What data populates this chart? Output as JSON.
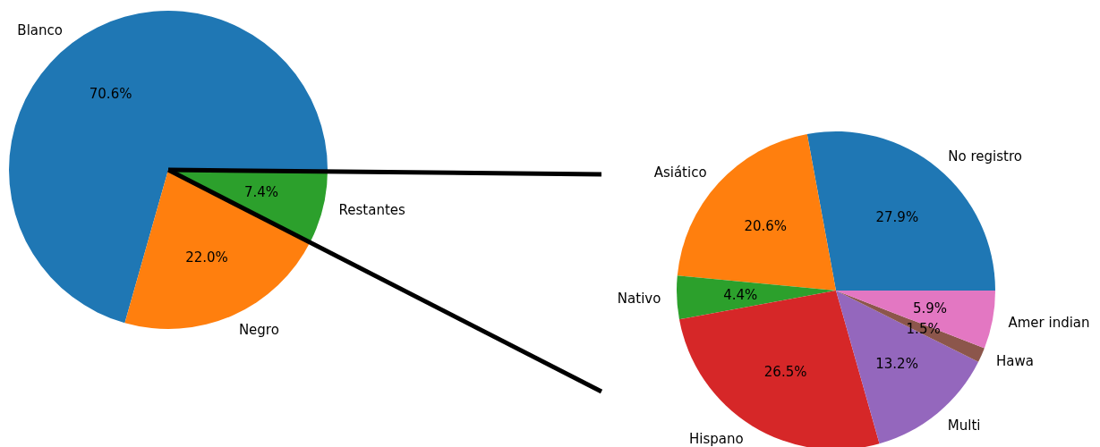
{
  "chart_data": [
    {
      "type": "pie",
      "categories": [
        "Blanco",
        "Negro",
        "Restantes"
      ],
      "values": [
        70.6,
        22.0,
        7.4
      ],
      "colors": [
        "#1f77b4",
        "#ff7f0e",
        "#2ca02c"
      ],
      "value_labels": [
        "70.6%",
        "22.0%",
        "7.4%"
      ]
    },
    {
      "type": "pie",
      "categories": [
        "No registro",
        "Asiático",
        "Nativo",
        "Hispano",
        "Multi",
        "Hawa",
        "Amer indian"
      ],
      "values": [
        27.9,
        20.6,
        4.4,
        26.5,
        13.2,
        1.5,
        5.9
      ],
      "colors": [
        "#1f77b4",
        "#ff7f0e",
        "#2ca02c",
        "#d62728",
        "#9467bd",
        "#8c564b",
        "#e377c2"
      ],
      "value_labels": [
        "27.9%",
        "20.6%",
        "4.4%",
        "26.5%",
        "13.2%",
        "1.5%",
        "5.9%"
      ]
    }
  ]
}
